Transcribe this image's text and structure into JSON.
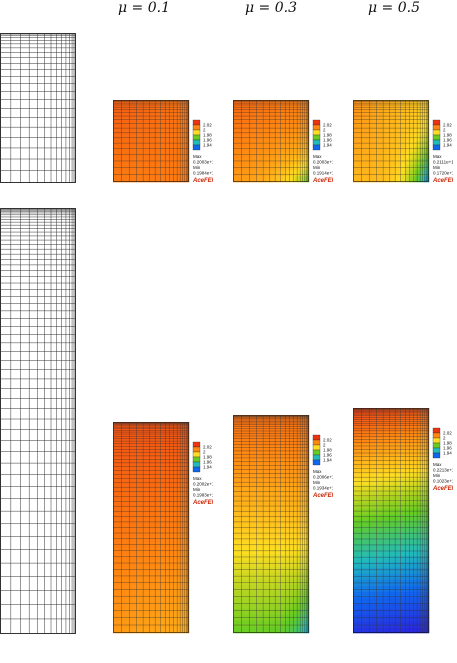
{
  "headers": [
    "μ = 0.1",
    "μ = 0.3",
    "μ = 0.5"
  ],
  "watermark": "AceFEM",
  "rows": [
    {
      "name": "short-domain",
      "plots": [
        {
          "legend_ticks": [
            "2.02",
            "2",
            "1.98",
            "1.96",
            "1.94"
          ],
          "max_label": "Max",
          "max_value": "0.2003e+1",
          "min_label": "Min",
          "min_value": "0.1984e+1"
        },
        {
          "legend_ticks": [
            "2.02",
            "2",
            "1.98",
            "1.96",
            "1.94"
          ],
          "max_label": "Max",
          "max_value": "0.2003e+1",
          "min_label": "Min",
          "min_value": "0.1914e+1"
        },
        {
          "legend_ticks": [
            "2.02",
            "2",
            "1.98",
            "1.96",
            "1.94"
          ],
          "max_label": "Max",
          "max_value": "0.2111e+1",
          "min_label": "Min",
          "min_value": "0.1720e+1"
        }
      ]
    },
    {
      "name": "tall-domain",
      "plots": [
        {
          "legend_ticks": [
            "2.02",
            "2",
            "1.98",
            "1.96",
            "1.94"
          ],
          "max_label": "Max",
          "max_value": "0.2002e+1",
          "min_label": "Min",
          "min_value": "0.1983e+1"
        },
        {
          "legend_ticks": [
            "2.02",
            "2",
            "1.98",
            "1.96",
            "1.94"
          ],
          "max_label": "Max",
          "max_value": "0.2006e+1",
          "min_label": "Min",
          "min_value": "0.1934e+1"
        },
        {
          "legend_ticks": [
            "2.02",
            "2",
            "1.98",
            "1.96",
            "1.94"
          ],
          "max_label": "Max",
          "max_value": "0.2213e+1",
          "min_label": "Min",
          "min_value": "0.1023e+1"
        }
      ]
    }
  ],
  "colors": {
    "legend": [
      "#ee3311",
      "#ff8811",
      "#ffdd22",
      "#66cc22",
      "#22bbbb",
      "#1166ee"
    ],
    "mesh_line": "#333333",
    "watermark": "#cc2200"
  }
}
